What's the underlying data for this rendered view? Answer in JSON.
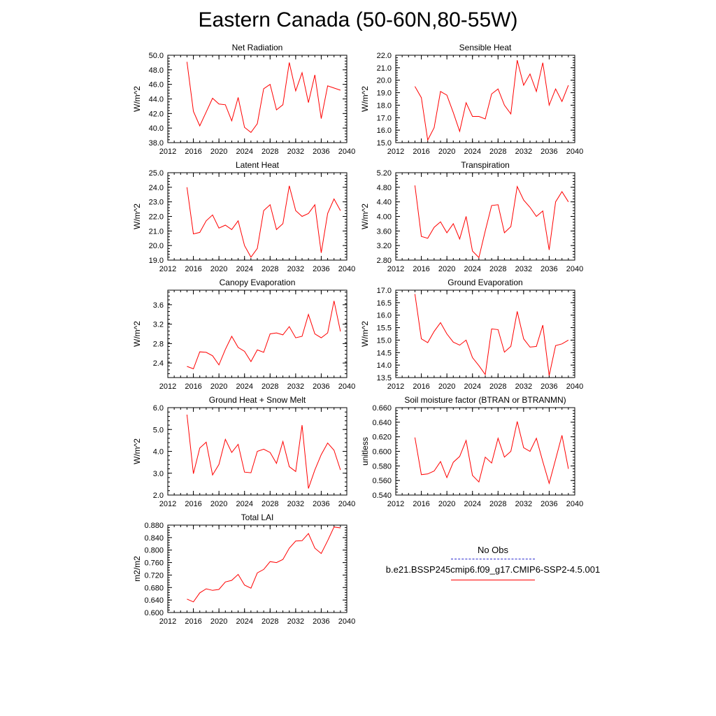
{
  "title": "Eastern Canada (50-60N,80-55W)",
  "legend": {
    "entries": [
      {
        "label": "No Obs",
        "color": "#2b2bd0",
        "style": "dashed"
      },
      {
        "label": "b.e21.BSSP245cmip6.f09_g17.CMIP6-SSP2-4.5.001",
        "color": "#ff0000",
        "style": "solid"
      }
    ]
  },
  "chart_data": [
    {
      "type": "line",
      "title": "Net Radiation",
      "ylabel": "W/m^2",
      "xlim": [
        2012,
        2040
      ],
      "ylim": [
        38,
        50
      ],
      "xticks": [
        2012,
        2016,
        2020,
        2024,
        2028,
        2032,
        2036,
        2040
      ],
      "yticks": [
        38,
        40,
        42,
        44,
        46,
        48,
        50
      ],
      "ydecimals": 1,
      "x": [
        2015,
        2016,
        2017,
        2018,
        2019,
        2020,
        2021,
        2022,
        2023,
        2024,
        2025,
        2026,
        2027,
        2028,
        2029,
        2030,
        2031,
        2032,
        2033,
        2034,
        2035,
        2036,
        2037,
        2038,
        2039
      ],
      "series": [
        {
          "color": "#ff0000",
          "values": [
            49.1,
            42.3,
            40.3,
            42.2,
            44.1,
            43.3,
            43.2,
            41.0,
            44.2,
            40.1,
            39.4,
            40.6,
            45.4,
            46.0,
            42.5,
            43.2,
            49.0,
            45.1,
            47.6,
            43.5,
            47.3,
            41.3,
            45.8,
            45.5,
            45.2
          ]
        }
      ]
    },
    {
      "type": "line",
      "title": "Sensible Heat",
      "ylabel": "W/m^2",
      "xlim": [
        2012,
        2040
      ],
      "ylim": [
        15,
        22
      ],
      "xticks": [
        2012,
        2016,
        2020,
        2024,
        2028,
        2032,
        2036,
        2040
      ],
      "yticks": [
        15,
        16,
        17,
        18,
        19,
        20,
        21,
        22
      ],
      "ydecimals": 1,
      "x": [
        2015,
        2016,
        2017,
        2018,
        2019,
        2020,
        2021,
        2022,
        2023,
        2024,
        2025,
        2026,
        2027,
        2028,
        2029,
        2030,
        2031,
        2032,
        2033,
        2034,
        2035,
        2036,
        2037,
        2038,
        2039
      ],
      "series": [
        {
          "color": "#ff0000",
          "values": [
            19.5,
            18.6,
            15.2,
            16.2,
            19.1,
            18.8,
            17.4,
            15.9,
            18.2,
            17.1,
            17.1,
            16.9,
            18.9,
            19.3,
            18.0,
            17.3,
            21.6,
            19.6,
            20.5,
            19.1,
            21.4,
            18.0,
            19.3,
            18.3,
            19.6
          ]
        }
      ]
    },
    {
      "type": "line",
      "title": "Latent Heat",
      "ylabel": "W/m^2",
      "xlim": [
        2012,
        2040
      ],
      "ylim": [
        19,
        25
      ],
      "xticks": [
        2012,
        2016,
        2020,
        2024,
        2028,
        2032,
        2036,
        2040
      ],
      "yticks": [
        19,
        20,
        21,
        22,
        23,
        24,
        25
      ],
      "ydecimals": 1,
      "x": [
        2015,
        2016,
        2017,
        2018,
        2019,
        2020,
        2021,
        2022,
        2023,
        2024,
        2025,
        2026,
        2027,
        2028,
        2029,
        2030,
        2031,
        2032,
        2033,
        2034,
        2035,
        2036,
        2037,
        2038,
        2039
      ],
      "series": [
        {
          "color": "#ff0000",
          "values": [
            24.0,
            20.8,
            20.9,
            21.7,
            22.1,
            21.2,
            21.4,
            21.1,
            21.7,
            20.0,
            19.2,
            19.8,
            22.4,
            22.8,
            21.1,
            21.5,
            24.1,
            22.4,
            22.0,
            22.2,
            22.8,
            19.5,
            22.2,
            23.2,
            22.4
          ]
        }
      ]
    },
    {
      "type": "line",
      "title": "Transpiration",
      "ylabel": "W/m^2",
      "xlim": [
        2012,
        2040
      ],
      "ylim": [
        2.8,
        5.2
      ],
      "xticks": [
        2012,
        2016,
        2020,
        2024,
        2028,
        2032,
        2036,
        2040
      ],
      "yticks": [
        2.8,
        3.2,
        3.6,
        4.0,
        4.4,
        4.8,
        5.2
      ],
      "ydecimals": 2,
      "x": [
        2015,
        2016,
        2017,
        2018,
        2019,
        2020,
        2021,
        2022,
        2023,
        2024,
        2025,
        2026,
        2027,
        2028,
        2029,
        2030,
        2031,
        2032,
        2033,
        2034,
        2035,
        2036,
        2037,
        2038,
        2039
      ],
      "series": [
        {
          "color": "#ff0000",
          "values": [
            4.85,
            3.45,
            3.4,
            3.7,
            3.85,
            3.55,
            3.8,
            3.38,
            4.0,
            3.05,
            2.87,
            3.6,
            4.3,
            4.32,
            3.55,
            3.72,
            4.82,
            4.45,
            4.25,
            4.0,
            4.15,
            3.08,
            4.4,
            4.68,
            4.4
          ]
        }
      ]
    },
    {
      "type": "line",
      "title": "Canopy Evaporation",
      "ylabel": "W/m^2",
      "xlim": [
        2012,
        2040
      ],
      "ylim": [
        2.1,
        3.9
      ],
      "xticks": [
        2012,
        2016,
        2020,
        2024,
        2028,
        2032,
        2036,
        2040
      ],
      "yticks": [
        2.4,
        2.8,
        3.2,
        3.6
      ],
      "ydecimals": 1,
      "x": [
        2015,
        2016,
        2017,
        2018,
        2019,
        2020,
        2021,
        2022,
        2023,
        2024,
        2025,
        2026,
        2027,
        2028,
        2029,
        2030,
        2031,
        2032,
        2033,
        2034,
        2035,
        2036,
        2037,
        2038,
        2039
      ],
      "series": [
        {
          "color": "#ff0000",
          "values": [
            2.33,
            2.28,
            2.63,
            2.62,
            2.55,
            2.36,
            2.68,
            2.95,
            2.72,
            2.64,
            2.43,
            2.67,
            2.62,
            3.0,
            3.02,
            2.98,
            3.15,
            2.92,
            2.95,
            3.4,
            3.0,
            2.92,
            3.02,
            3.68,
            3.05
          ]
        }
      ]
    },
    {
      "type": "line",
      "title": "Ground Evaporation",
      "ylabel": "W/m^2",
      "xlim": [
        2012,
        2040
      ],
      "ylim": [
        13.5,
        17
      ],
      "xticks": [
        2012,
        2016,
        2020,
        2024,
        2028,
        2032,
        2036,
        2040
      ],
      "yticks": [
        13.5,
        14.0,
        14.5,
        15.0,
        15.5,
        16.0,
        16.5,
        17.0
      ],
      "ydecimals": 1,
      "x": [
        2015,
        2016,
        2017,
        2018,
        2019,
        2020,
        2021,
        2022,
        2023,
        2024,
        2025,
        2026,
        2027,
        2028,
        2029,
        2030,
        2031,
        2032,
        2033,
        2034,
        2035,
        2036,
        2037,
        2038,
        2039
      ],
      "series": [
        {
          "color": "#ff0000",
          "values": [
            16.85,
            15.05,
            14.9,
            15.35,
            15.7,
            15.25,
            14.92,
            14.8,
            15.0,
            14.3,
            13.98,
            13.62,
            15.45,
            15.42,
            14.52,
            14.75,
            16.15,
            15.05,
            14.72,
            14.75,
            15.6,
            13.58,
            14.78,
            14.85,
            15.0
          ]
        }
      ]
    },
    {
      "type": "line",
      "title": "Ground Heat + Snow Melt",
      "ylabel": "W/m^2",
      "xlim": [
        2012,
        2040
      ],
      "ylim": [
        2,
        6
      ],
      "xticks": [
        2012,
        2016,
        2020,
        2024,
        2028,
        2032,
        2036,
        2040
      ],
      "yticks": [
        2,
        3,
        4,
        5,
        6
      ],
      "ydecimals": 1,
      "x": [
        2015,
        2016,
        2017,
        2018,
        2019,
        2020,
        2021,
        2022,
        2023,
        2024,
        2025,
        2026,
        2027,
        2028,
        2029,
        2030,
        2031,
        2032,
        2033,
        2034,
        2035,
        2036,
        2037,
        2038,
        2039
      ],
      "series": [
        {
          "color": "#ff0000",
          "values": [
            5.68,
            2.98,
            4.15,
            4.42,
            2.92,
            3.4,
            4.55,
            3.95,
            4.32,
            3.05,
            3.02,
            4.0,
            4.1,
            3.95,
            3.45,
            4.45,
            3.3,
            3.08,
            5.2,
            2.3,
            3.15,
            3.85,
            4.38,
            4.05,
            3.15
          ]
        }
      ]
    },
    {
      "type": "line",
      "title": "Soil moisture factor (BTRAN or BTRANMN)",
      "ylabel": "unitless",
      "xlim": [
        2012,
        2040
      ],
      "ylim": [
        0.54,
        0.66
      ],
      "xticks": [
        2012,
        2016,
        2020,
        2024,
        2028,
        2032,
        2036,
        2040
      ],
      "yticks": [
        0.54,
        0.56,
        0.58,
        0.6,
        0.62,
        0.64,
        0.66
      ],
      "ydecimals": 3,
      "x": [
        2015,
        2016,
        2017,
        2018,
        2019,
        2020,
        2021,
        2022,
        2023,
        2024,
        2025,
        2026,
        2027,
        2028,
        2029,
        2030,
        2031,
        2032,
        2033,
        2034,
        2035,
        2036,
        2037,
        2038,
        2039
      ],
      "series": [
        {
          "color": "#ff0000",
          "values": [
            0.619,
            0.568,
            0.569,
            0.573,
            0.586,
            0.564,
            0.585,
            0.593,
            0.615,
            0.567,
            0.558,
            0.592,
            0.584,
            0.618,
            0.592,
            0.6,
            0.641,
            0.605,
            0.6,
            0.618,
            0.586,
            0.556,
            0.589,
            0.622,
            0.576
          ]
        }
      ]
    },
    {
      "type": "line",
      "title": "Total LAI",
      "ylabel": "m2/m2",
      "xlim": [
        2012,
        2040
      ],
      "ylim": [
        0.6,
        0.88
      ],
      "xticks": [
        2012,
        2016,
        2020,
        2024,
        2028,
        2032,
        2036,
        2040
      ],
      "yticks": [
        0.6,
        0.64,
        0.68,
        0.72,
        0.76,
        0.8,
        0.84,
        0.88
      ],
      "ydecimals": 3,
      "x": [
        2015,
        2016,
        2017,
        2018,
        2019,
        2020,
        2021,
        2022,
        2023,
        2024,
        2025,
        2026,
        2027,
        2028,
        2029,
        2030,
        2031,
        2032,
        2033,
        2034,
        2035,
        2036,
        2037,
        2038,
        2039
      ],
      "series": [
        {
          "color": "#ff0000",
          "values": [
            0.643,
            0.634,
            0.663,
            0.676,
            0.671,
            0.674,
            0.698,
            0.703,
            0.722,
            0.688,
            0.678,
            0.727,
            0.738,
            0.763,
            0.76,
            0.77,
            0.806,
            0.829,
            0.83,
            0.853,
            0.806,
            0.789,
            0.83,
            0.874,
            0.871
          ]
        }
      ]
    }
  ]
}
